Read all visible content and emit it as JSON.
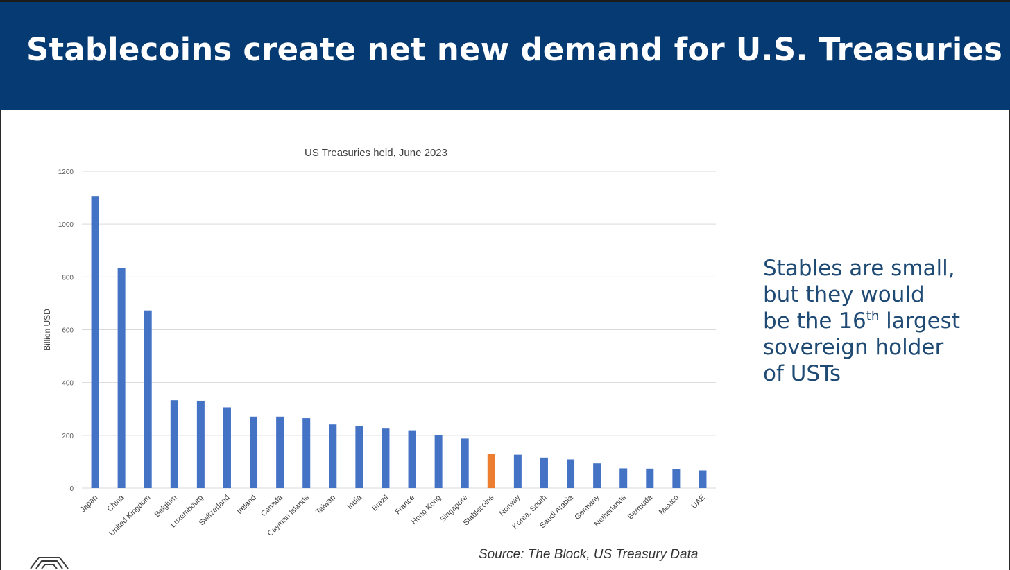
{
  "slide": {
    "title": "Stablecoins create net new demand for U.S. Treasuries",
    "callout": {
      "line1": "Stables are small,",
      "line2": "but they would",
      "line3_pre": "be the 16",
      "line3_sup": "th",
      "line3_post": " largest",
      "line4": "sovereign holder",
      "line5": "of USTs"
    },
    "source": "Source: The Block, US Treasury Data"
  },
  "colors": {
    "header_bg": "#053a72",
    "bar": "#4472c4",
    "highlight_bar": "#ed7d31",
    "grid": "#d9d9d9",
    "callout_text": "#1e4a74"
  },
  "icons": {
    "logo": "company-logo-icon"
  },
  "chart_data": {
    "type": "bar",
    "title": "US Treasuries held, June 2023",
    "xlabel": "",
    "ylabel": "Billion USD",
    "ylim": [
      0,
      1200
    ],
    "yticks": [
      0,
      200,
      400,
      600,
      800,
      1000,
      1200
    ],
    "grid": true,
    "highlight": "Stablecoins",
    "categories": [
      "Japan",
      "China",
      "United Kingdom",
      "Belgium",
      "Luxembourg",
      "Switzerland",
      "Ireland",
      "Canada",
      "Cayman Islands",
      "Taiwan",
      "India",
      "Brazil",
      "France",
      "Hong Kong",
      "Singapore",
      "Stablecoins",
      "Norway",
      "Korea, South",
      "Saudi Arabia",
      "Germany",
      "Netherlands",
      "Bermuda",
      "Mexico",
      "UAE"
    ],
    "values": [
      1105,
      835,
      673,
      333,
      331,
      306,
      271,
      271,
      265,
      241,
      236,
      228,
      219,
      200,
      188,
      131,
      127,
      116,
      109,
      94,
      75,
      74,
      71,
      67
    ]
  }
}
